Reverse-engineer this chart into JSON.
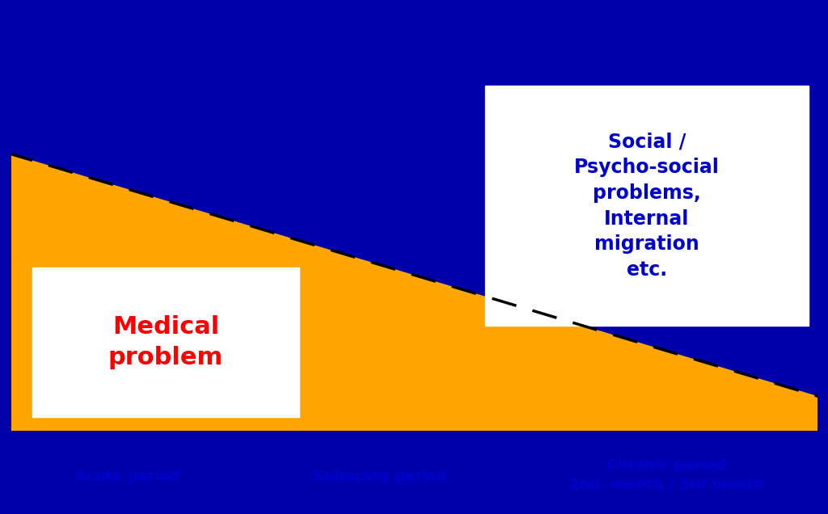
{
  "bg_outer": "#0000AA",
  "bg_inner": "#C8E8F8",
  "orange_color": "#FFA500",
  "dashed_line_color": "#000000",
  "border_color": "#0000AA",
  "text_social_color": "#0000CC",
  "text_medical_color": "#FF0000",
  "text_period_color": "#0000CC",
  "social_text": "Social /\nPsycho-social\nproblems,\nInternal\nmigration\netc.",
  "medical_text": "Medical\nproblem",
  "acute_text": "Acute period",
  "subacute_text": "Subacute period",
  "chronic_text": "Chronic period\n2nd. month / 3rd month",
  "figsize": [
    10.24,
    6.36
  ],
  "dpi": 100
}
